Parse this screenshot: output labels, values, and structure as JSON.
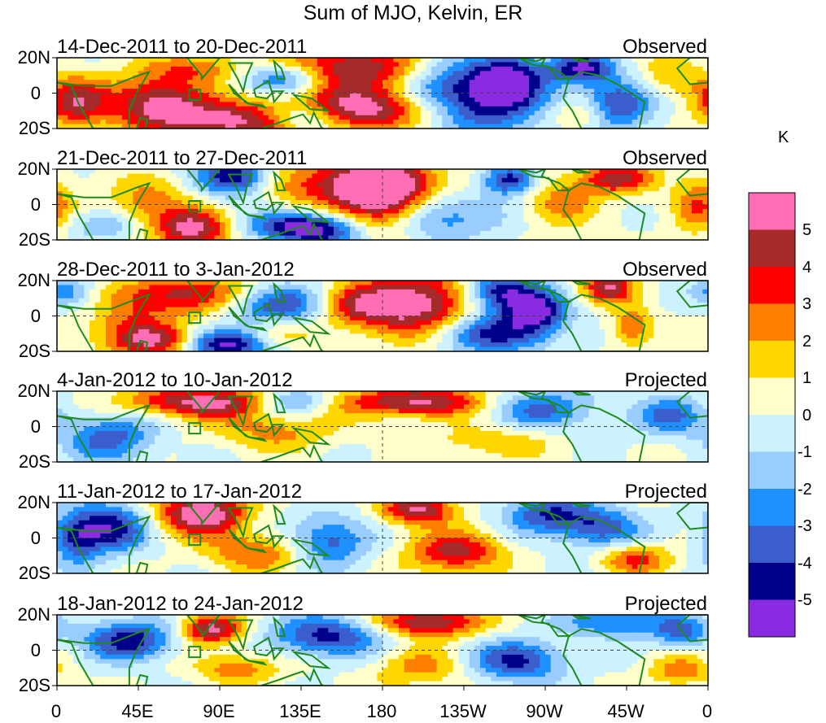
{
  "title": "Sum of MJO, Kelvin, ER",
  "panels": [
    {
      "dates": "14-Dec-2011 to 20-Dec-2011",
      "status": "Observed",
      "intensity": 1.0
    },
    {
      "dates": "21-Dec-2011 to 27-Dec-2011",
      "status": "Observed",
      "intensity": 1.0
    },
    {
      "dates": "28-Dec-2011 to 3-Jan-2012",
      "status": "Observed",
      "intensity": 1.0
    },
    {
      "dates": "4-Jan-2012 to 10-Jan-2012",
      "status": "Projected",
      "intensity": 0.45
    },
    {
      "dates": "11-Jan-2012 to 17-Jan-2012",
      "status": "Projected",
      "intensity": 0.5
    },
    {
      "dates": "18-Jan-2012 to 24-Jan-2012",
      "status": "Projected",
      "intensity": 0.45
    }
  ],
  "y_ticks": [
    "20N",
    "0",
    "20S"
  ],
  "x_ticks": [
    "0",
    "45E",
    "90E",
    "135E",
    "180",
    "135W",
    "90W",
    "45W",
    "0"
  ],
  "colorbar": {
    "units": "K",
    "tick_labels": [
      "5",
      "4",
      "3",
      "2",
      "1",
      "0",
      "-1",
      "-2",
      "-3",
      "-4",
      "-5"
    ],
    "colors": [
      "#ff6eb4",
      "#a52a2a",
      "#ff0000",
      "#ff7f00",
      "#ffd700",
      "#ffffcc",
      "#ccf2ff",
      "#99ccff",
      "#1e90ff",
      "#3a5fcd",
      "#00008b",
      "#8a2be2"
    ]
  }
}
